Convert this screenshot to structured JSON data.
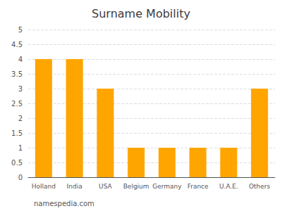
{
  "chart_data": {
    "type": "bar",
    "title": "Surname Mobility",
    "categories": [
      "Holland",
      "India",
      "USA",
      "Belgium",
      "Germany",
      "France",
      "U.A.E.",
      "Others"
    ],
    "values": [
      4,
      4,
      3,
      1,
      1,
      1,
      1,
      3
    ],
    "color": "#FFA500",
    "ylim": [
      0,
      5
    ],
    "yticks": [
      0,
      0.5,
      1,
      1.5,
      2,
      2.5,
      3,
      3.5,
      4,
      4.5,
      5
    ],
    "grid": true,
    "footnote": "namespedia.com"
  }
}
